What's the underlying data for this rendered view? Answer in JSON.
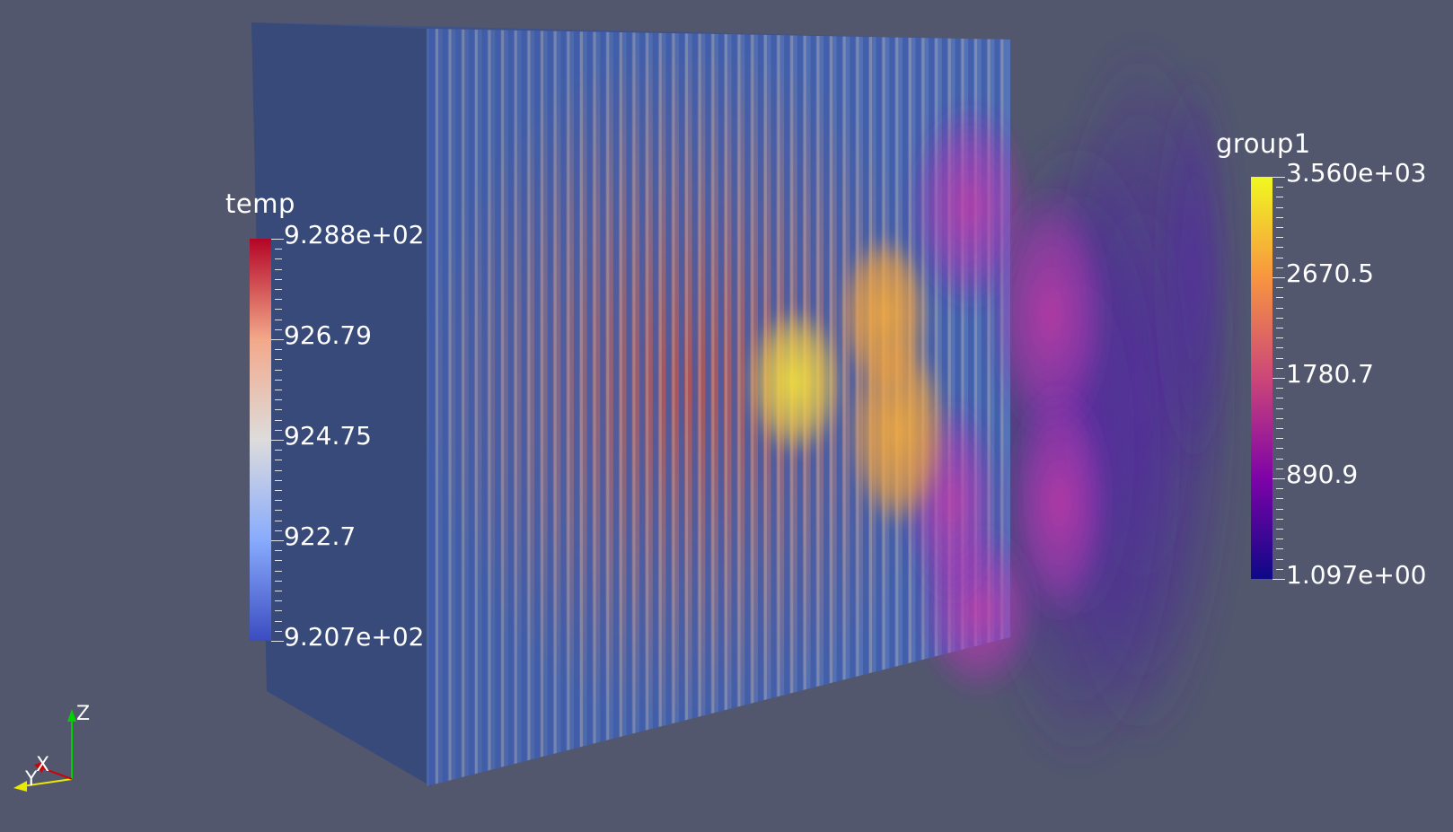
{
  "scalar_bars": {
    "temp": {
      "title": "temp",
      "labels": [
        "9.288e+02",
        "926.79",
        "924.75",
        "922.7",
        "9.207e+02"
      ],
      "colormap": [
        "#b40426",
        "#f3a889",
        "#dddcdc",
        "#88abfd",
        "#3b4cc0"
      ]
    },
    "group1": {
      "title": "group1",
      "labels": [
        "3.560e+03",
        "2670.5",
        "1780.7",
        "890.9",
        "1.097e+00"
      ],
      "colormap": [
        "#f0f921",
        "#f89540",
        "#cc4778",
        "#7e03a8",
        "#0d0887"
      ]
    }
  },
  "orientation_axes": {
    "z_label": "Z",
    "x_label": "X",
    "y_label": "Y",
    "z_color": "#00d000",
    "x_color": "#d00000",
    "y_color": "#e8e800"
  }
}
